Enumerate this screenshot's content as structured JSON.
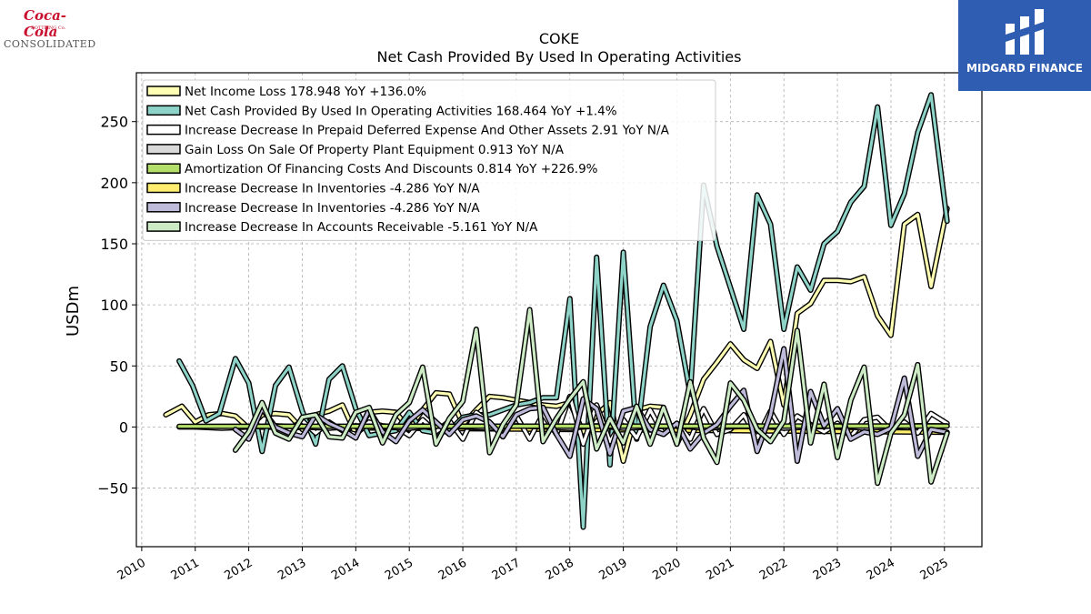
{
  "logos": {
    "left_brand": "Coca-Cola",
    "left_sub": "BOTTLING Co.",
    "left_word": "CONSOLIDATED",
    "right_name": "MIDGARD FINANCE"
  },
  "chart_data": {
    "type": "line",
    "title": "COKE",
    "subtitle": "Net Cash Provided By Used In Operating Activities",
    "ylabel": "USDm",
    "xlabel": "",
    "ylim": [
      -98,
      290
    ],
    "xlim": [
      2009.9,
      2025.7
    ],
    "grid": true,
    "legend_position": "top-left",
    "yticks": [
      -50,
      0,
      50,
      100,
      150,
      200,
      250
    ],
    "xticks": [
      "2010",
      "2011",
      "2012",
      "2013",
      "2014",
      "2015",
      "2016",
      "2017",
      "2018",
      "2019",
      "2020",
      "2021",
      "2022",
      "2023",
      "2024",
      "2025"
    ],
    "series": [
      {
        "name": "Net Income Loss  178.948 YoY +136.0%",
        "color": "#ffffb3",
        "z": 1,
        "x": [
          2010.45,
          2010.75,
          2011.0,
          2011.25,
          2011.5,
          2011.75,
          2012.0,
          2012.25,
          2012.5,
          2012.75,
          2013.0,
          2013.25,
          2013.5,
          2013.75,
          2014.0,
          2014.25,
          2014.5,
          2014.75,
          2015.0,
          2015.25,
          2015.5,
          2015.75,
          2016.0,
          2016.25,
          2016.5,
          2016.75,
          2017.0,
          2017.25,
          2017.5,
          2017.75,
          2018.0,
          2018.25,
          2018.5,
          2018.75,
          2019.0,
          2019.25,
          2019.5,
          2019.75,
          2020.0,
          2020.25,
          2020.5,
          2020.75,
          2021.0,
          2021.25,
          2021.5,
          2021.75,
          2022.0,
          2022.25,
          2022.5,
          2022.75,
          2023.0,
          2023.25,
          2023.5,
          2023.75,
          2024.0,
          2024.25,
          2024.5,
          2024.75,
          2025.05
        ],
        "y": [
          10,
          17,
          4,
          10,
          11,
          9,
          -1,
          10,
          11,
          10,
          -2,
          10,
          13,
          18,
          -6,
          12,
          13,
          12,
          -2,
          14,
          28,
          27,
          2,
          14,
          25,
          24,
          22,
          20,
          18,
          17,
          20,
          -4,
          10,
          20,
          -28,
          14,
          17,
          16,
          -14,
          10,
          39,
          53,
          68,
          55,
          48,
          70,
          18,
          93,
          101,
          120,
          120,
          119,
          123,
          91,
          75,
          166,
          174,
          115,
          178.948
        ]
      },
      {
        "name": "Net Cash Provided By Used In Operating Activities  168.464 YoY +1.4%",
        "color": "#8dd3c7",
        "z": 2,
        "x": [
          2010.7,
          2010.95,
          2011.2,
          2011.45,
          2011.75,
          2012.0,
          2012.25,
          2012.5,
          2012.75,
          2013.0,
          2013.25,
          2013.5,
          2013.75,
          2014.0,
          2014.25,
          2014.5,
          2014.75,
          2015.0,
          2015.25,
          2015.5,
          2015.75,
          2016.0,
          2016.25,
          2016.5,
          2016.75,
          2017.0,
          2017.25,
          2017.5,
          2017.75,
          2018.0,
          2018.25,
          2018.5,
          2018.75,
          2019.0,
          2019.25,
          2019.5,
          2019.75,
          2020.0,
          2020.25,
          2020.5,
          2020.75,
          2021.0,
          2021.25,
          2021.5,
          2021.75,
          2022.0,
          2022.25,
          2022.5,
          2022.75,
          2023.0,
          2023.25,
          2023.5,
          2023.75,
          2024.0,
          2024.25,
          2024.5,
          2024.75,
          2025.05
        ],
        "y": [
          54,
          34,
          5,
          11,
          56,
          36,
          -20,
          34,
          49,
          13,
          -14,
          39,
          50,
          15,
          -7,
          -5,
          -3,
          12,
          -3,
          -5,
          -3,
          8,
          10,
          10,
          14,
          18,
          20,
          24,
          24,
          105,
          -82,
          139,
          -31,
          143,
          -10,
          82,
          116,
          87,
          27,
          198,
          148,
          114,
          80,
          190,
          166,
          80,
          131,
          112,
          150,
          160,
          184,
          197,
          262,
          165,
          191,
          241,
          272,
          168.464
        ]
      },
      {
        "name": "Increase Decrease In Prepaid Deferred Expense And Other Assets  2.91 YoY N/A",
        "color": "#ffffff",
        "z": 3,
        "x": [
          2012.75,
          2013.0,
          2013.25,
          2013.5,
          2013.75,
          2014.0,
          2014.25,
          2014.5,
          2014.75,
          2015.0,
          2015.25,
          2015.5,
          2015.75,
          2016.0,
          2016.25,
          2016.5,
          2016.75,
          2017.0,
          2017.25,
          2017.5,
          2017.75,
          2018.0,
          2018.25,
          2018.5,
          2018.75,
          2019.0,
          2019.25,
          2019.5,
          2019.75,
          2020.0,
          2020.25,
          2020.5,
          2020.75,
          2021.0,
          2021.25,
          2021.5,
          2021.75,
          2022.0,
          2022.25,
          2022.5,
          2022.75,
          2023.0,
          2023.25,
          2023.5,
          2023.75,
          2024.0,
          2024.25,
          2024.5,
          2024.75,
          2025.05
        ],
        "y": [
          -2,
          5,
          -5,
          4,
          -3,
          -6,
          4,
          1,
          0,
          -7,
          6,
          -4,
          5,
          -10,
          12,
          4,
          -8,
          9,
          -10,
          11,
          -6,
          25,
          -14,
          18,
          -12,
          6,
          -9,
          14,
          -6,
          3,
          -10,
          15,
          -6,
          -2,
          10,
          -9,
          13,
          -6,
          9,
          2,
          -4,
          3,
          -8,
          6,
          8,
          -3,
          4,
          -5,
          11,
          2.91
        ]
      },
      {
        "name": "Gain Loss On Sale Of Property Plant Equipment  0.913 YoY N/A",
        "color": "#d9d9d9",
        "z": 4,
        "x": [
          2010.7,
          2011.0,
          2011.5,
          2012.0,
          2012.5,
          2013.0,
          2013.5,
          2014.0,
          2014.5,
          2015.0,
          2015.5,
          2016.0,
          2016.5,
          2017.0,
          2017.5,
          2018.0,
          2018.5,
          2019.0,
          2019.5,
          2020.0,
          2020.5,
          2021.0,
          2021.5,
          2022.0,
          2022.5,
          2023.0,
          2023.5,
          2024.0,
          2024.5,
          2025.05
        ],
        "y": [
          0,
          0,
          -1,
          0,
          1,
          0,
          -1,
          1,
          0,
          -1,
          1,
          0,
          -1,
          1,
          0,
          -1,
          1,
          -1,
          0,
          1,
          -1,
          0,
          1,
          -1,
          0,
          1,
          -1,
          0,
          1,
          0.913
        ]
      },
      {
        "name": "Amortization Of Financing Costs And Discounts  0.814 YoY +226.9%",
        "color": "#b3de69",
        "z": 5,
        "x": [
          2010.7,
          2025.05
        ],
        "y": [
          0.5,
          0.814
        ]
      },
      {
        "name": "Increase Decrease In Inventories  -4.286 YoY N/A",
        "color": "#ffed6f",
        "z": 0,
        "x": [
          2011.75,
          2025.05
        ],
        "y": [
          0,
          -4.286
        ]
      },
      {
        "name": "Increase Decrease In Inventories  -4.286 YoY N/A",
        "color": "#bebada",
        "z": 6,
        "x": [
          2011.75,
          2012.0,
          2012.25,
          2012.5,
          2012.75,
          2013.0,
          2013.25,
          2013.5,
          2013.75,
          2014.0,
          2014.25,
          2014.5,
          2014.75,
          2015.0,
          2015.25,
          2015.5,
          2015.75,
          2016.0,
          2016.25,
          2016.5,
          2016.75,
          2017.0,
          2017.25,
          2017.5,
          2017.75,
          2018.0,
          2018.25,
          2018.5,
          2018.75,
          2019.0,
          2019.25,
          2019.5,
          2019.75,
          2020.0,
          2020.25,
          2020.5,
          2020.75,
          2021.0,
          2021.25,
          2021.5,
          2021.75,
          2022.0,
          2022.25,
          2022.5,
          2022.75,
          2023.0,
          2023.25,
          2023.5,
          2023.75,
          2024.0,
          2024.25,
          2024.5,
          2024.75,
          2025.05
        ],
        "y": [
          -2,
          -10,
          15,
          0,
          -5,
          -8,
          10,
          3,
          -2,
          -9,
          14,
          -4,
          -12,
          5,
          14,
          4,
          -6,
          6,
          9,
          4,
          -8,
          10,
          15,
          16,
          -6,
          -24,
          23,
          15,
          -22,
          13,
          16,
          -2,
          -6,
          3,
          -18,
          -5,
          2,
          17,
          30,
          -20,
          10,
          64,
          -28,
          29,
          1,
          15,
          -10,
          -4,
          -6,
          -1,
          40,
          -24,
          -2,
          -4.286
        ]
      },
      {
        "name": "Increase Decrease In Accounts Receivable  -5.161 YoY N/A",
        "color": "#ccebc5",
        "z": 7,
        "x": [
          2011.75,
          2012.0,
          2012.25,
          2012.5,
          2012.75,
          2013.0,
          2013.25,
          2013.5,
          2013.75,
          2014.0,
          2014.25,
          2014.5,
          2014.75,
          2015.0,
          2015.25,
          2015.5,
          2015.75,
          2016.0,
          2016.25,
          2016.5,
          2016.75,
          2017.0,
          2017.25,
          2017.5,
          2017.75,
          2018.0,
          2018.25,
          2018.5,
          2018.75,
          2019.0,
          2019.25,
          2019.5,
          2019.75,
          2020.0,
          2020.25,
          2020.5,
          2020.75,
          2021.0,
          2021.25,
          2021.5,
          2021.75,
          2022.0,
          2022.25,
          2022.5,
          2022.75,
          2023.0,
          2023.25,
          2023.5,
          2023.75,
          2024.0,
          2024.25,
          2024.5,
          2024.75,
          2025.05
        ],
        "y": [
          -19,
          -4,
          20,
          -5,
          -10,
          8,
          10,
          -8,
          -9,
          12,
          16,
          -13,
          10,
          20,
          49,
          -14,
          7,
          21,
          80,
          -21,
          2,
          18,
          96,
          -12,
          7,
          23,
          37,
          -18,
          7,
          -13,
          17,
          -14,
          16,
          -14,
          37,
          -9,
          -29,
          36,
          22,
          -2,
          -12,
          5,
          79,
          -13,
          35,
          -25,
          22,
          49,
          -46,
          -5,
          10,
          51,
          -45,
          -5.161
        ]
      }
    ]
  }
}
